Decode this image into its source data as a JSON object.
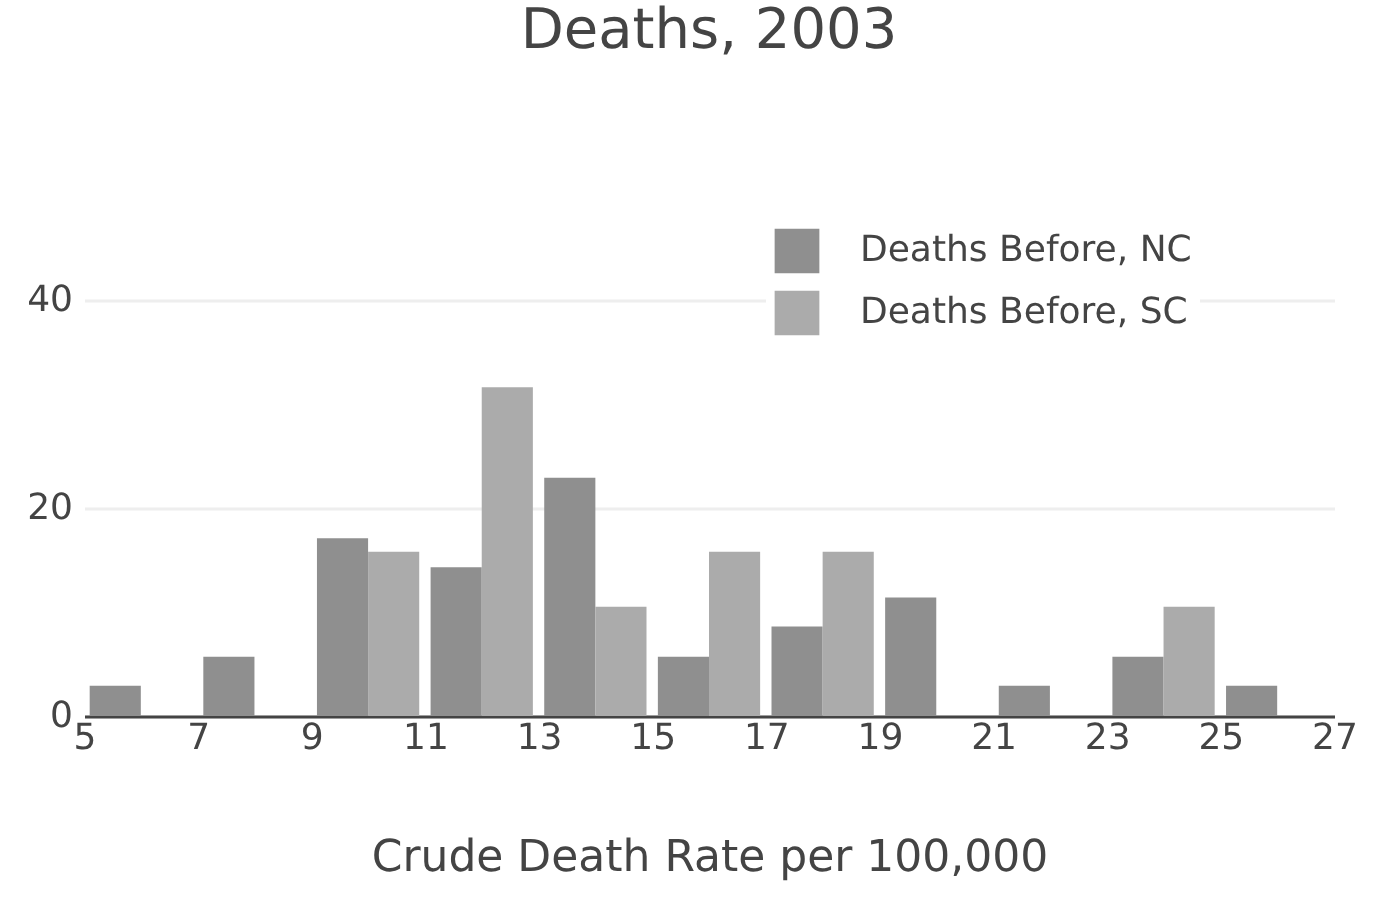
{
  "chart_data": {
    "type": "histogram",
    "title": "Deaths, 2003",
    "xlabel": "Crude Death Rate per 100,000",
    "bins": [
      5,
      7,
      9,
      11,
      13,
      15,
      17,
      19,
      21,
      23,
      25,
      27
    ],
    "series": [
      {
        "name": "Deaths Before, NC",
        "color": "#8f8f8f",
        "values": [
          2.9,
          5.7,
          17.1,
          14.3,
          22.9,
          5.7,
          8.6,
          11.4,
          2.9,
          5.7,
          2.9
        ]
      },
      {
        "name": "Deaths Before, SC",
        "color": "#ababab",
        "values": [
          0,
          0,
          15.8,
          31.6,
          10.5,
          15.8,
          15.8,
          0,
          0,
          10.5,
          0
        ]
      }
    ],
    "xlim": [
      5,
      27
    ],
    "xticks": [
      5,
      7,
      9,
      11,
      13,
      15,
      17,
      19,
      21,
      23,
      25,
      27
    ],
    "ylim": [
      0,
      40
    ],
    "yticks": [
      0,
      20,
      40
    ],
    "grid": "y",
    "legend": "top right"
  }
}
